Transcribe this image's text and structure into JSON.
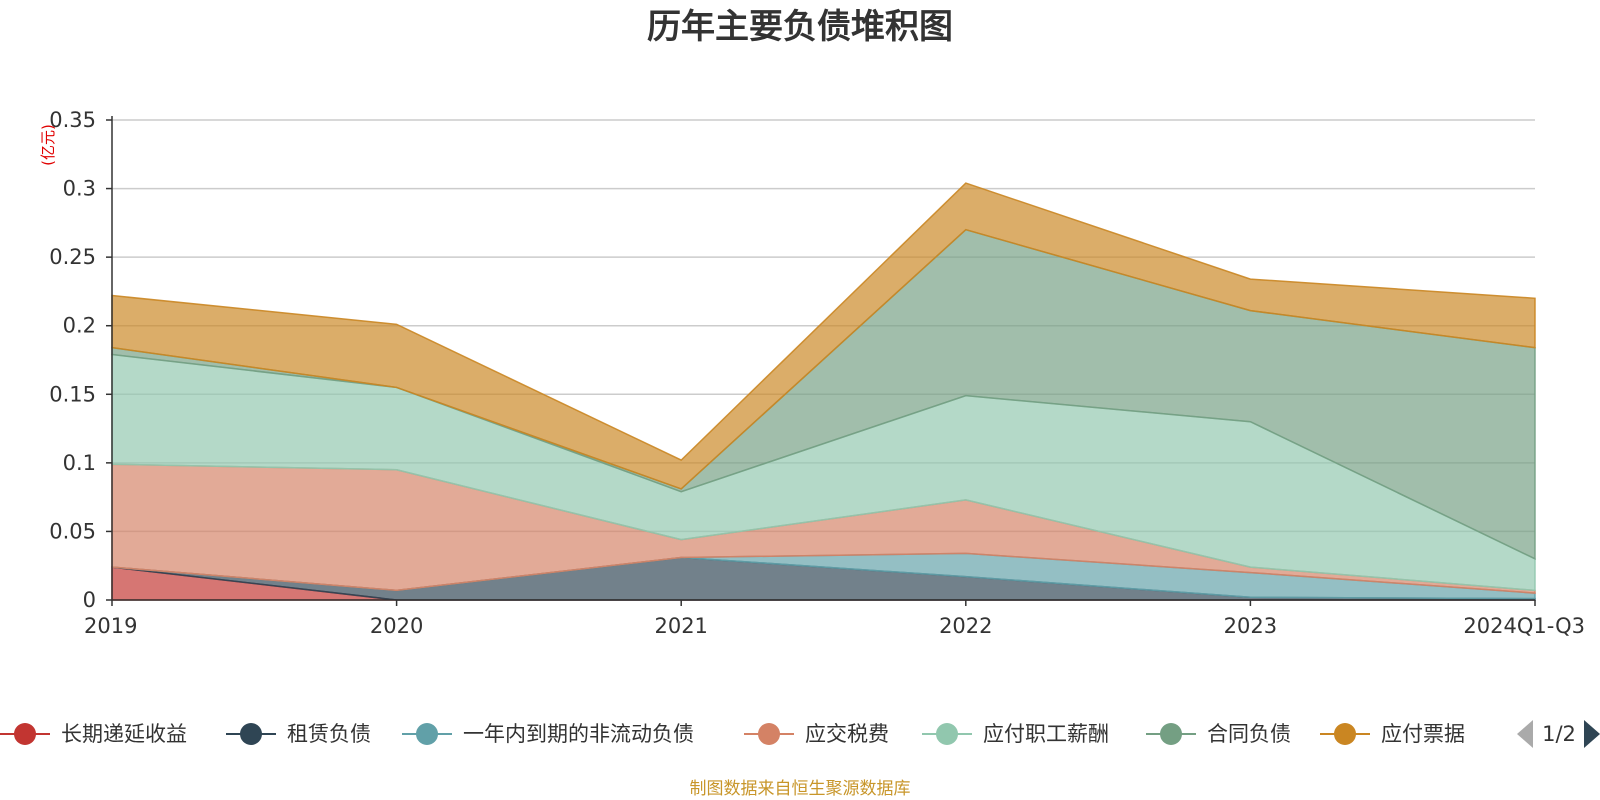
{
  "chart_data": {
    "type": "area",
    "stacked": true,
    "title": "历年主要负债堆积图",
    "y_unit_label": "(亿元)",
    "categories": [
      "2019",
      "2020",
      "2021",
      "2022",
      "2023",
      "2024Q1-Q3"
    ],
    "y_ticks": [
      "0",
      "0.05",
      "0.1",
      "0.15",
      "0.2",
      "0.25",
      "0.3",
      "0.35"
    ],
    "ylim": [
      0,
      0.35
    ],
    "grid": true,
    "legend_position": "bottom",
    "series": [
      {
        "name": "长期递延收益",
        "color": "#c23531",
        "values": [
          0.024,
          0.0,
          0.0,
          0.0,
          0.0,
          0.0
        ]
      },
      {
        "name": "租赁负债",
        "color": "#2f4554",
        "values": [
          0.0,
          0.007,
          0.031,
          0.017,
          0.002,
          0.001
        ]
      },
      {
        "name": "一年内到期的非流动负债",
        "color": "#61a0a8",
        "values": [
          0.0,
          0.0,
          0.0,
          0.017,
          0.018,
          0.004
        ]
      },
      {
        "name": "应交税费",
        "color": "#d48265",
        "values": [
          0.075,
          0.088,
          0.013,
          0.039,
          0.004,
          0.002
        ]
      },
      {
        "name": "应付职工薪酬",
        "color": "#91c7ae",
        "values": [
          0.08,
          0.06,
          0.035,
          0.076,
          0.106,
          0.023
        ]
      },
      {
        "name": "合同负债",
        "color": "#749f83",
        "values": [
          0.005,
          0.0,
          0.002,
          0.121,
          0.081,
          0.154
        ]
      },
      {
        "name": "应付票据",
        "color": "#ca8622",
        "values": [
          0.038,
          0.046,
          0.021,
          0.034,
          0.023,
          0.036
        ]
      }
    ]
  },
  "legend": {
    "page_indicator": "1/2"
  },
  "source_note": "制图数据来自恒生聚源数据库",
  "source_color": "#c8962a"
}
